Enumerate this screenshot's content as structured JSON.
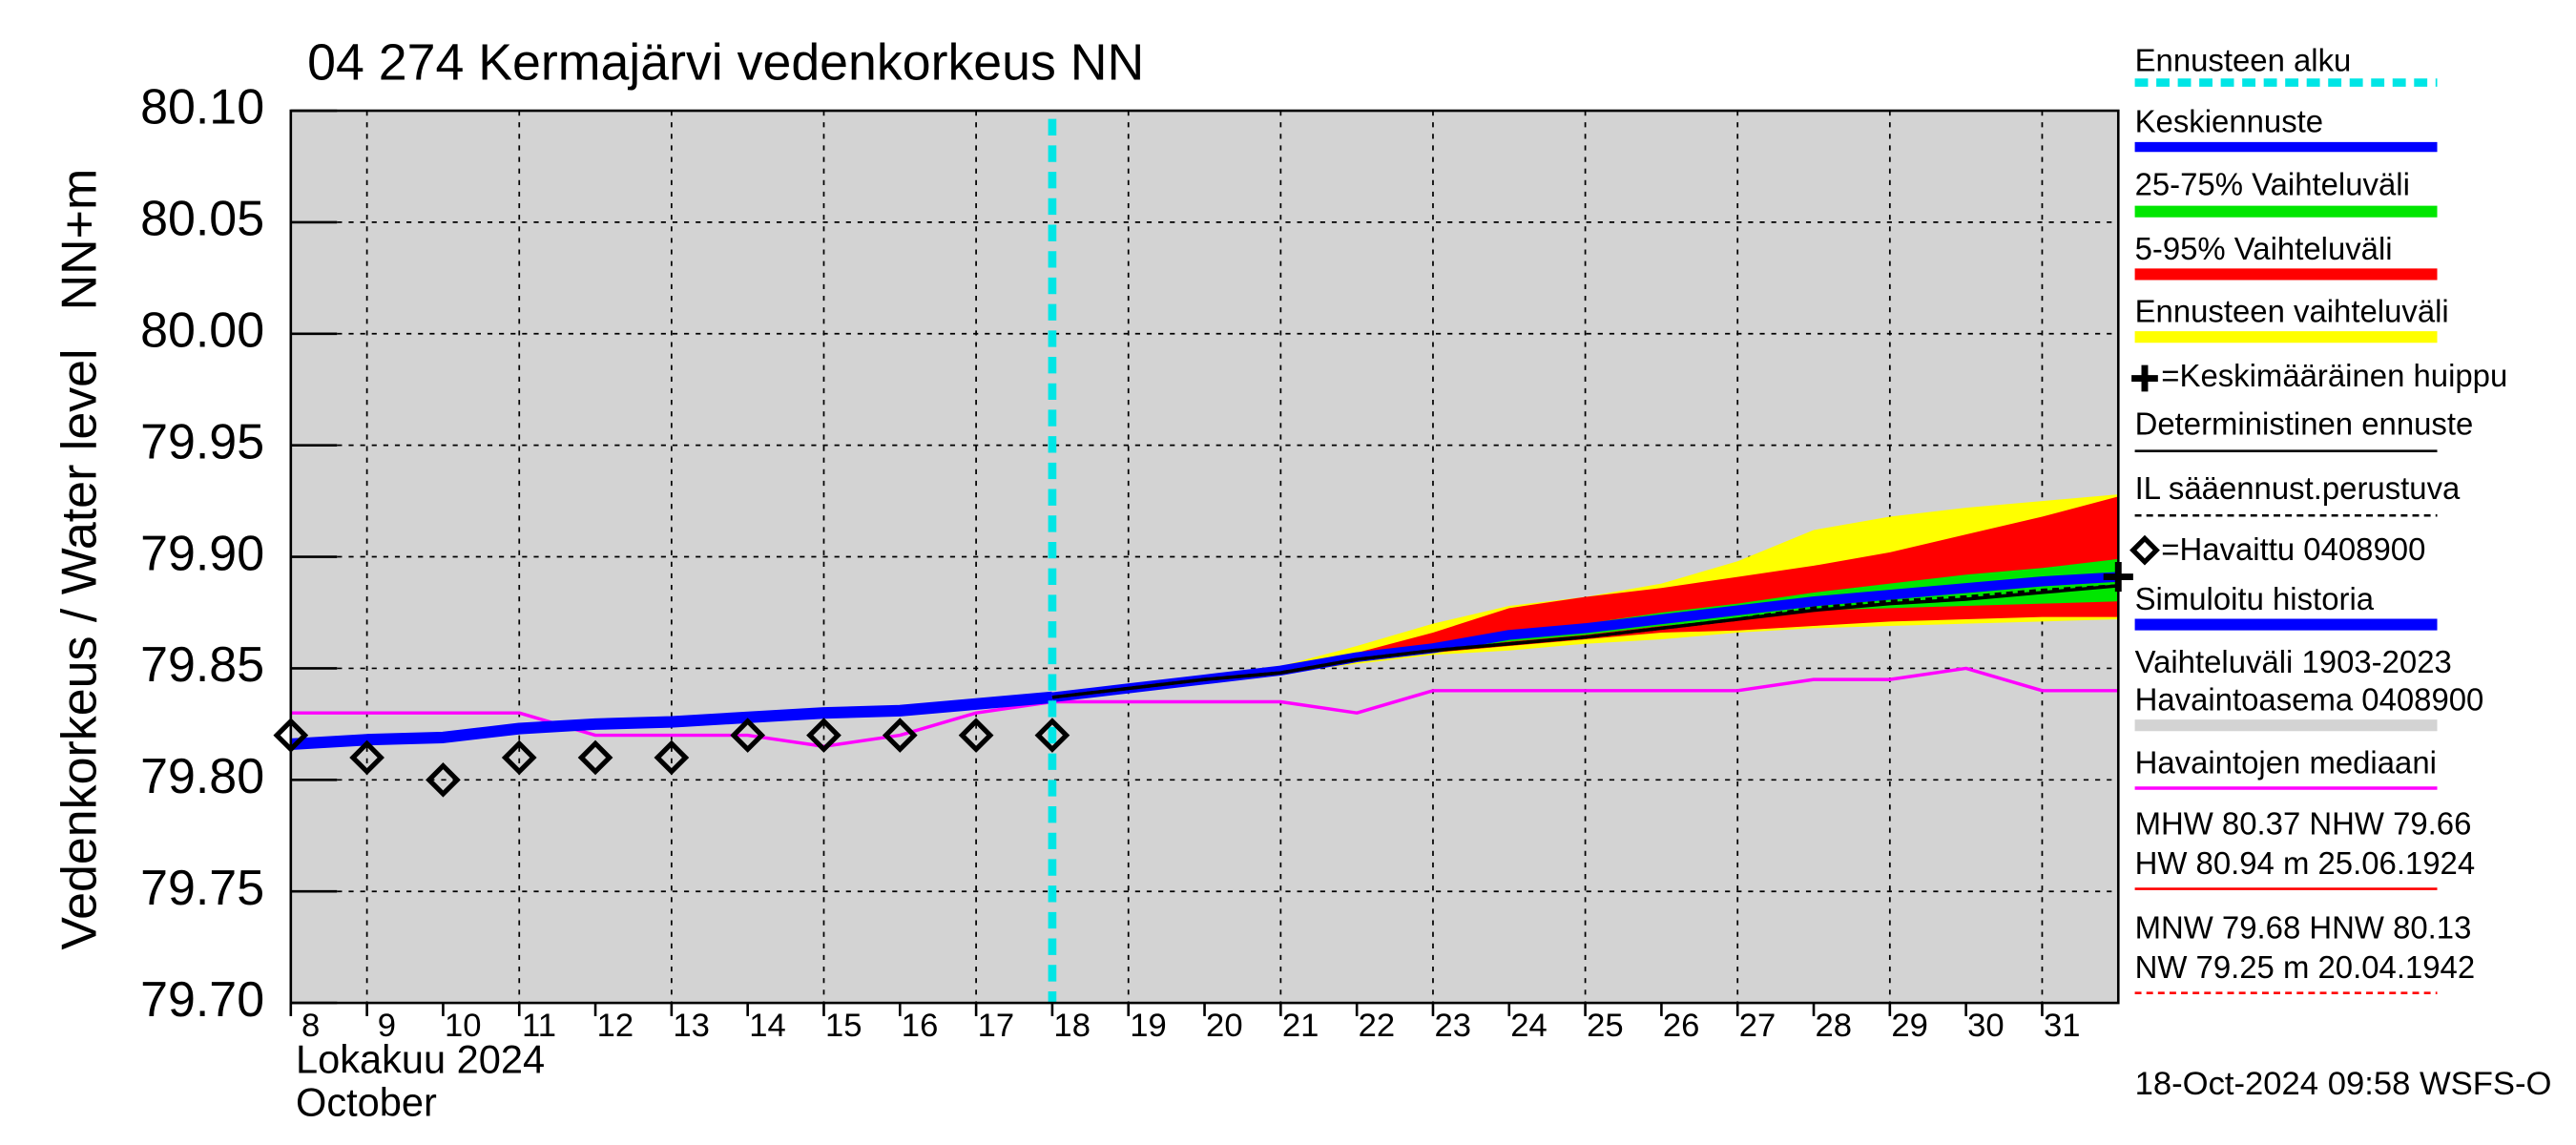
{
  "chart_data": {
    "type": "line",
    "title": "04 274 Kermajärvi vedenkorkeus NN",
    "y_label": "Vedenkorkeus / Water level",
    "y_unit": "NN+m",
    "x_label_fi": "Lokakuu   2024",
    "x_label_en": "October",
    "footer": "18-Oct-2024 09:58 WSFS-O",
    "xlim": [
      8,
      32
    ],
    "xticks": [
      8,
      9,
      10,
      11,
      12,
      13,
      14,
      15,
      16,
      17,
      18,
      19,
      20,
      21,
      22,
      23,
      24,
      25,
      26,
      27,
      28,
      29,
      30,
      31
    ],
    "ylim": [
      79.7,
      80.1
    ],
    "yticks": [
      {
        "value": 79.7,
        "label": "79.70"
      },
      79.75,
      {
        "value": 79.8,
        "label": "79.80"
      },
      79.85,
      {
        "value": 79.9,
        "label": "79.90"
      },
      79.95,
      {
        "value": 80.0,
        "label": "80.00"
      },
      {
        "value": 80.05,
        "label": "80.05"
      },
      {
        "value": 80.1,
        "label": "80.10"
      }
    ],
    "background": {
      "name": [
        "Vaihteluväli 1903-2023",
        "Havaintoasema 0408900"
      ],
      "color": "#d3d3d3"
    },
    "forecast_start": {
      "name": "Ennusteen alku",
      "color": "#00e5e5",
      "x": 18
    },
    "bands": [
      {
        "name": "Ennusteen vaihteluväli",
        "color": "#ffff00",
        "x": [
          18,
          19,
          20,
          21,
          22,
          23,
          24,
          25,
          26,
          27,
          28,
          29,
          30,
          31,
          32
        ],
        "high": [
          79.837,
          79.841,
          79.846,
          79.851,
          79.86,
          79.87,
          79.878,
          79.882,
          79.888,
          79.898,
          79.912,
          79.918,
          79.922,
          79.925,
          79.928
        ],
        "low": [
          79.837,
          79.841,
          79.845,
          79.848,
          79.852,
          79.856,
          79.858,
          79.861,
          79.863,
          79.866,
          79.868,
          79.869,
          79.87,
          79.871,
          79.872
        ]
      },
      {
        "name": "5-95% Vaihteluväli",
        "color": "#ff0000",
        "x": [
          18,
          19,
          20,
          21,
          22,
          23,
          24,
          25,
          26,
          27,
          28,
          29,
          30,
          31,
          32
        ],
        "high": [
          79.837,
          79.841,
          79.845,
          79.85,
          79.857,
          79.866,
          79.877,
          79.882,
          79.886,
          79.891,
          79.896,
          79.902,
          79.91,
          79.918,
          79.927
        ],
        "low": [
          79.837,
          79.841,
          79.845,
          79.848,
          79.853,
          79.857,
          79.86,
          79.863,
          79.866,
          79.867,
          79.869,
          79.871,
          79.872,
          79.873,
          79.873
        ]
      },
      {
        "name": "25-75% Vaihteluväli",
        "color": "#00e600",
        "x": [
          18,
          19,
          20,
          21,
          22,
          23,
          24,
          25,
          26,
          27,
          28,
          29,
          30,
          31,
          32
        ],
        "high": [
          79.837,
          79.841,
          79.845,
          79.849,
          79.856,
          79.861,
          79.867,
          79.87,
          79.875,
          79.879,
          79.884,
          79.888,
          79.892,
          79.895,
          79.899
        ],
        "low": [
          79.837,
          79.841,
          79.845,
          79.848,
          79.854,
          79.858,
          79.862,
          79.865,
          79.869,
          79.872,
          79.876,
          79.877,
          79.878,
          79.879,
          79.88
        ]
      }
    ],
    "series": [
      {
        "name": "Havaintojen mediaani",
        "color": "#ff00ff",
        "width": 2,
        "x": [
          8,
          9,
          10,
          11,
          12,
          13,
          14,
          15,
          16,
          17,
          18,
          19,
          20,
          21,
          22,
          23,
          24,
          25,
          26,
          27,
          28,
          29,
          30,
          31,
          32
        ],
        "values": [
          79.83,
          79.83,
          79.83,
          79.83,
          79.82,
          79.82,
          79.82,
          79.815,
          79.82,
          79.83,
          79.835,
          79.835,
          79.835,
          79.835,
          79.83,
          79.84,
          79.84,
          79.84,
          79.84,
          79.84,
          79.845,
          79.845,
          79.85,
          79.84,
          79.84
        ]
      },
      {
        "name": "Simuloitu historia",
        "color": "#0000ff",
        "width": 7,
        "x": [
          8,
          9,
          10,
          11,
          12,
          13,
          14,
          15,
          16,
          17,
          18
        ],
        "values": [
          79.816,
          79.818,
          79.819,
          79.823,
          79.825,
          79.826,
          79.828,
          79.83,
          79.831,
          79.834,
          79.837
        ]
      },
      {
        "name": "Keskiennuste",
        "color": "#0000ff",
        "width": 6,
        "x": [
          18,
          19,
          20,
          21,
          22,
          23,
          24,
          25,
          26,
          27,
          28,
          29,
          30,
          31,
          32
        ],
        "values": [
          79.837,
          79.841,
          79.845,
          79.849,
          79.855,
          79.859,
          79.865,
          79.868,
          79.872,
          79.876,
          79.88,
          79.883,
          79.886,
          79.889,
          79.891
        ]
      },
      {
        "name": "Deterministinen ennuste",
        "color": "#000000",
        "width": 2,
        "x": [
          18,
          19,
          20,
          21,
          22,
          23,
          24,
          25,
          26,
          27,
          28,
          29,
          30,
          31,
          32
        ],
        "values": [
          79.837,
          79.841,
          79.845,
          79.848,
          79.854,
          79.858,
          79.861,
          79.864,
          79.868,
          79.872,
          79.876,
          79.879,
          79.881,
          79.884,
          79.887
        ]
      },
      {
        "name": "IL sääennust.perustuva",
        "color": "#000000",
        "width": 2,
        "dash": true,
        "x": [
          18,
          19,
          20,
          21,
          22,
          23,
          24,
          25,
          26,
          27,
          28,
          29,
          30,
          31,
          32
        ],
        "values": [
          79.837,
          79.841,
          79.845,
          79.848,
          79.854,
          79.858,
          79.861,
          79.864,
          79.868,
          79.872,
          79.877,
          79.88,
          79.882,
          79.885,
          79.887
        ]
      }
    ],
    "observed": {
      "name": "=Havaittu 0408900",
      "color": "#000000",
      "x": [
        8,
        9,
        10,
        11,
        12,
        13,
        14,
        15,
        16,
        17,
        18
      ],
      "values": [
        79.82,
        79.81,
        79.8,
        79.81,
        79.81,
        79.81,
        79.82,
        79.82,
        79.82,
        79.82,
        79.82
      ]
    },
    "peak": {
      "name": "=Keskimääräinen huippu",
      "x": 32,
      "y": 79.891
    },
    "stats": [
      {
        "lines": [
          "MHW  80.37 NHW  79.66",
          "HW  80.94 m 25.06.1924"
        ],
        "color": "#ff0000"
      },
      {
        "lines": [
          "MNW  79.68 HNW  80.13",
          "NW  79.25 m 20.04.1942"
        ],
        "color": "#ff0000",
        "dash": true
      }
    ]
  }
}
